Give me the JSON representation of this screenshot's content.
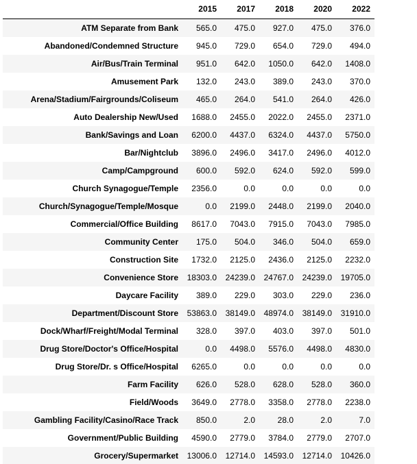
{
  "table": {
    "columns": [
      "",
      "2015",
      "2017",
      "2018",
      "2020",
      "2022"
    ],
    "rows": [
      {
        "label": "ATM Separate from Bank",
        "values": [
          "565.0",
          "475.0",
          "927.0",
          "475.0",
          "376.0"
        ]
      },
      {
        "label": "Abandoned/Condemned Structure",
        "values": [
          "945.0",
          "729.0",
          "654.0",
          "729.0",
          "494.0"
        ]
      },
      {
        "label": "Air/Bus/Train Terminal",
        "values": [
          "951.0",
          "642.0",
          "1050.0",
          "642.0",
          "1408.0"
        ]
      },
      {
        "label": "Amusement Park",
        "values": [
          "132.0",
          "243.0",
          "389.0",
          "243.0",
          "370.0"
        ]
      },
      {
        "label": "Arena/Stadium/Fairgrounds/Coliseum",
        "values": [
          "465.0",
          "264.0",
          "541.0",
          "264.0",
          "426.0"
        ]
      },
      {
        "label": "Auto Dealership New/Used",
        "values": [
          "1688.0",
          "2455.0",
          "2022.0",
          "2455.0",
          "2371.0"
        ]
      },
      {
        "label": "Bank/Savings and Loan",
        "values": [
          "6200.0",
          "4437.0",
          "6324.0",
          "4437.0",
          "5750.0"
        ]
      },
      {
        "label": "Bar/Nightclub",
        "values": [
          "3896.0",
          "2496.0",
          "3417.0",
          "2496.0",
          "4012.0"
        ]
      },
      {
        "label": "Camp/Campground",
        "values": [
          "600.0",
          "592.0",
          "624.0",
          "592.0",
          "599.0"
        ]
      },
      {
        "label": "Church Synagogue/Temple",
        "values": [
          "2356.0",
          "0.0",
          "0.0",
          "0.0",
          "0.0"
        ]
      },
      {
        "label": "Church/Synagogue/Temple/Mosque",
        "values": [
          "0.0",
          "2199.0",
          "2448.0",
          "2199.0",
          "2040.0"
        ]
      },
      {
        "label": "Commercial/Office Building",
        "values": [
          "8617.0",
          "7043.0",
          "7915.0",
          "7043.0",
          "7985.0"
        ]
      },
      {
        "label": "Community Center",
        "values": [
          "175.0",
          "504.0",
          "346.0",
          "504.0",
          "659.0"
        ]
      },
      {
        "label": "Construction Site",
        "values": [
          "1732.0",
          "2125.0",
          "2436.0",
          "2125.0",
          "2232.0"
        ]
      },
      {
        "label": "Convenience Store",
        "values": [
          "18303.0",
          "24239.0",
          "24767.0",
          "24239.0",
          "19705.0"
        ]
      },
      {
        "label": "Daycare Facility",
        "values": [
          "389.0",
          "229.0",
          "303.0",
          "229.0",
          "236.0"
        ]
      },
      {
        "label": "Department/Discount Store",
        "values": [
          "53863.0",
          "38149.0",
          "48974.0",
          "38149.0",
          "31910.0"
        ]
      },
      {
        "label": "Dock/Wharf/Freight/Modal Terminal",
        "values": [
          "328.0",
          "397.0",
          "403.0",
          "397.0",
          "501.0"
        ]
      },
      {
        "label": "Drug Store/Doctor's Office/Hospital",
        "values": [
          "0.0",
          "4498.0",
          "5576.0",
          "4498.0",
          "4830.0"
        ]
      },
      {
        "label": "Drug Store/Dr. s Office/Hospital",
        "values": [
          "6265.0",
          "0.0",
          "0.0",
          "0.0",
          "0.0"
        ]
      },
      {
        "label": "Farm Facility",
        "values": [
          "626.0",
          "528.0",
          "628.0",
          "528.0",
          "360.0"
        ]
      },
      {
        "label": "Field/Woods",
        "values": [
          "3649.0",
          "2778.0",
          "3358.0",
          "2778.0",
          "2238.0"
        ]
      },
      {
        "label": "Gambling Facility/Casino/Race Track",
        "values": [
          "850.0",
          "2.0",
          "28.0",
          "2.0",
          "7.0"
        ]
      },
      {
        "label": "Government/Public Building",
        "values": [
          "4590.0",
          "2779.0",
          "3784.0",
          "2779.0",
          "2707.0"
        ]
      },
      {
        "label": "Grocery/Supermarket",
        "values": [
          "13006.0",
          "12714.0",
          "14593.0",
          "12714.0",
          "10426.0"
        ]
      }
    ]
  }
}
